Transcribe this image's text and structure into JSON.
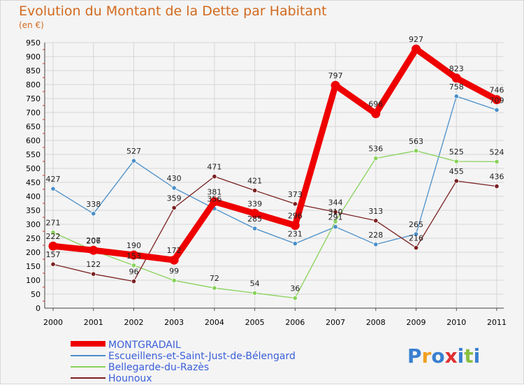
{
  "chart_data": {
    "type": "line",
    "title": "Evolution du Montant de la Dette par Habitant",
    "ylabel": "(en €)",
    "xlabel": "",
    "x": [
      "2000",
      "2001",
      "2002",
      "2003",
      "2004",
      "2005",
      "2006",
      "2007",
      "2008",
      "2009",
      "2010",
      "2011"
    ],
    "ylim": [
      0,
      950
    ],
    "yticks": [
      0,
      50,
      100,
      150,
      200,
      250,
      300,
      350,
      400,
      450,
      500,
      550,
      600,
      650,
      700,
      750,
      800,
      850,
      900,
      950
    ],
    "grid": true,
    "legend_position": "bottom-left",
    "series": [
      {
        "name": "MONTGRADAIL",
        "color": "#ee0000",
        "values": [
          222,
          207,
          190,
          172,
          381,
          339,
          296,
          797,
          696,
          927,
          823,
          746
        ]
      },
      {
        "name": "Escueillens-et-Saint-Just-de-Bélengard",
        "color": "#4a8fc9",
        "values": [
          427,
          338,
          527,
          430,
          356,
          285,
          231,
          291,
          228,
          265,
          758,
          709
        ]
      },
      {
        "name": "Bellegarde-du-Razès",
        "color": "#88d25a",
        "values": [
          271,
          206,
          153,
          99,
          72,
          54,
          36,
          310,
          536,
          563,
          525,
          524
        ]
      },
      {
        "name": "Hounoux",
        "color": "#7a2020",
        "values": [
          157,
          122,
          96,
          359,
          471,
          421,
          373,
          344,
          313,
          216,
          455,
          436
        ]
      }
    ],
    "data_labels": [
      [
        "222",
        "207",
        "190",
        "172",
        "381",
        "339",
        "296",
        "797",
        "696",
        "927",
        "823",
        "746"
      ],
      [
        "427",
        "338",
        "527",
        "430",
        "356",
        "285",
        "231",
        "291",
        "228",
        "265",
        "758",
        "709"
      ],
      [
        "271",
        "206",
        "153",
        "99",
        "72",
        "54",
        "36",
        "310",
        "536",
        "563",
        "525",
        "524"
      ],
      [
        "157",
        "122",
        "96",
        "359",
        "471",
        "421",
        "373",
        "344",
        "313",
        "216",
        "455",
        "436"
      ]
    ]
  },
  "logo": {
    "text": "Proxiti",
    "colors": [
      "#3a7fd0",
      "#f0a020",
      "#3a7fd0",
      "#e03030",
      "#3a7fd0",
      "#88c040",
      "#3a7fd0"
    ]
  }
}
